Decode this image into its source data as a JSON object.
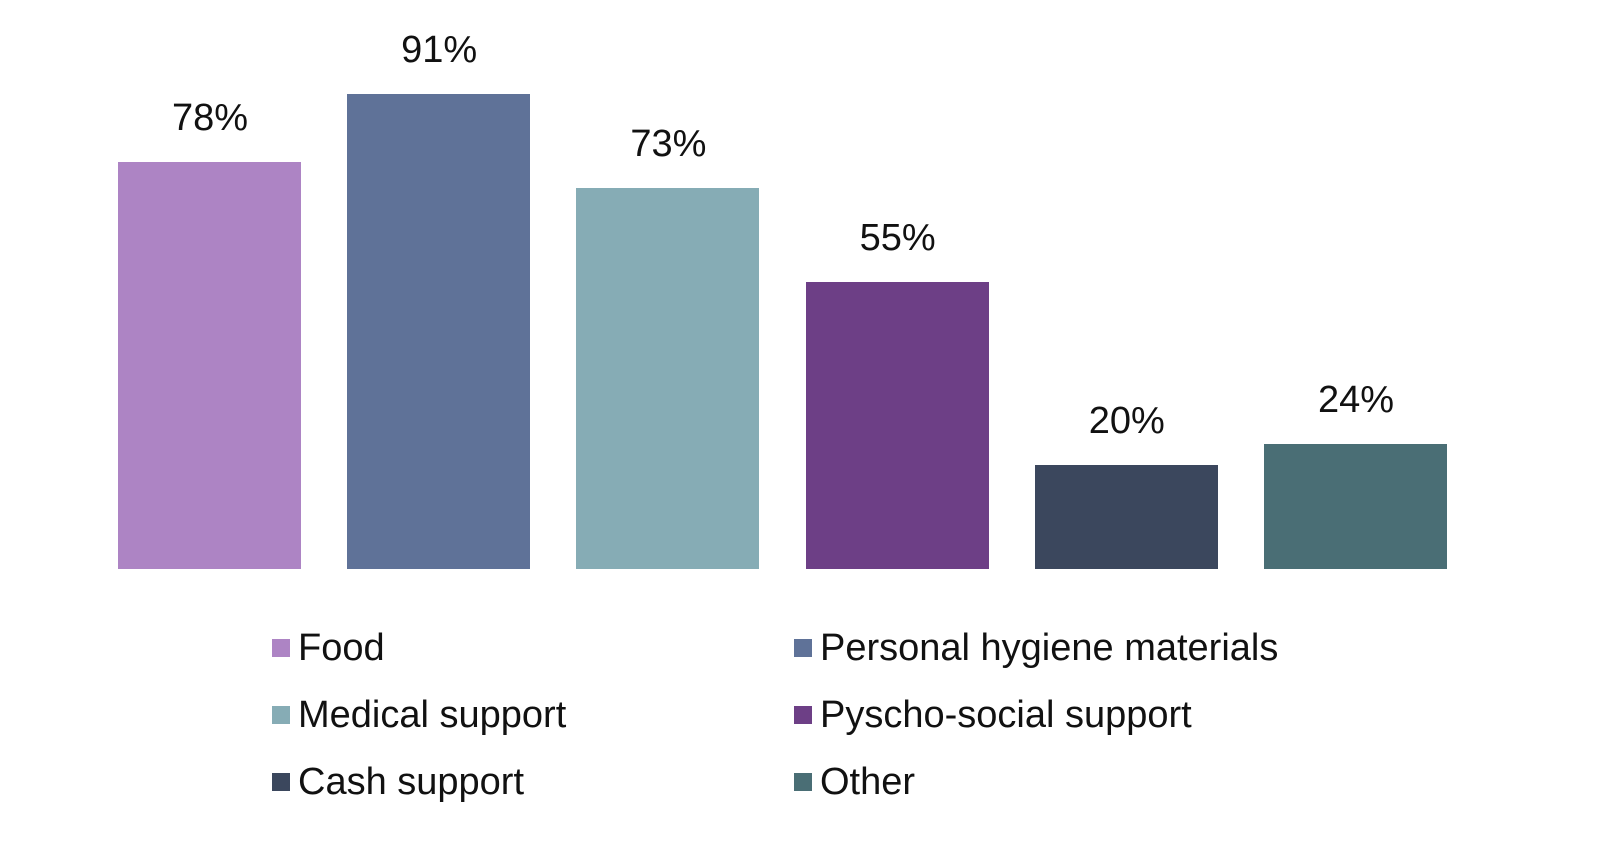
{
  "chart_data": {
    "type": "bar",
    "title": "",
    "xlabel": "",
    "ylabel": "",
    "ylim": [
      0,
      100
    ],
    "grid": false,
    "legend_position": "bottom",
    "categories": [
      "Food",
      "Personal hygiene materials",
      "Medical support",
      "Pyscho-social support",
      "Cash support",
      "Other"
    ],
    "values": [
      78,
      91,
      73,
      55,
      20,
      24
    ],
    "labels": [
      "78%",
      "91%",
      "73%",
      "55%",
      "20%",
      "24%"
    ],
    "colors": [
      "#ad84c4",
      "#5f7298",
      "#86acb5",
      "#6d3f86",
      "#3b475d",
      "#4a6e75"
    ]
  },
  "legend": {
    "items": [
      {
        "label": "Food",
        "color": "#ad84c4"
      },
      {
        "label": "Personal hygiene materials",
        "color": "#5f7298"
      },
      {
        "label": "Medical support",
        "color": "#86acb5"
      },
      {
        "label": "Pyscho-social support",
        "color": "#6d3f86"
      },
      {
        "label": "Cash support",
        "color": "#3b475d"
      },
      {
        "label": "Other",
        "color": "#4a6e75"
      }
    ]
  }
}
